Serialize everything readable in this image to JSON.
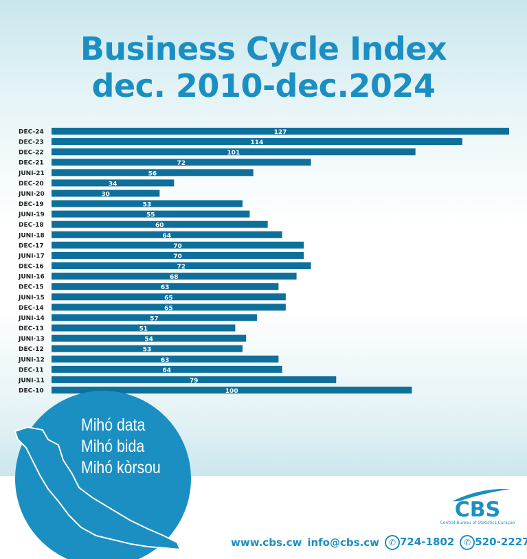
{
  "header": {
    "title_line1": "Business Cycle Index",
    "title_line2": "dec. 2010-dec.2024"
  },
  "chart_data": {
    "type": "bar",
    "orientation": "horizontal",
    "title": "Business Cycle Index dec. 2010-dec.2024",
    "categories": [
      "DEC-24",
      "DEC-23",
      "DEC-22",
      "DEC-21",
      "JUNI-21",
      "DEC-20",
      "JUNI-20",
      "DEC-19",
      "JUNI-19",
      "DEC-18",
      "JUNI-18",
      "DEC-17",
      "JUNI-17",
      "DEC-16",
      "JUNI-16",
      "DEC-15",
      "JUNI-15",
      "DEC-14",
      "JUNI-14",
      "DEC-13",
      "JUNI-13",
      "DEC-12",
      "JUNI-12",
      "DEC-11",
      "JUNI-11",
      "DEC-10"
    ],
    "values": [
      127,
      114,
      101,
      72,
      56,
      34,
      30,
      53,
      55,
      60,
      64,
      70,
      70,
      72,
      68,
      63,
      65,
      65,
      57,
      51,
      54,
      53,
      63,
      64,
      79,
      100
    ],
    "xlim": [
      0,
      127
    ],
    "grid": false,
    "bar_color": "#0e6f9b"
  },
  "slogan": [
    "Mihó data",
    "Mihó bida",
    "Mihó kòrsou"
  ],
  "logo": {
    "name": "CBS",
    "subtitle": "Central Bureau of Statistics Curaçao"
  },
  "footer": {
    "website": "www.cbs.cw",
    "email": "info@cbs.cw",
    "phone": "724-1802",
    "whatsapp": "520-2227"
  },
  "colors": {
    "accent": "#1b8fc2",
    "bar": "#0e6f9b"
  }
}
